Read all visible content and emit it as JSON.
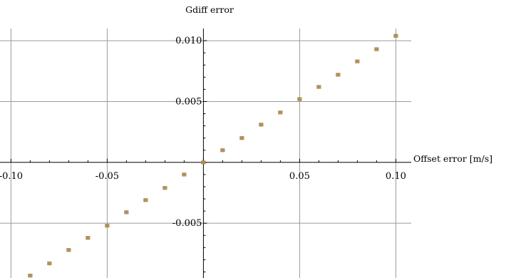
{
  "chart_data": {
    "type": "scatter",
    "title": "",
    "xlabel": "Offset error [m/s]",
    "ylabel": "Gdiff error",
    "xlim": [
      -0.102,
      0.108
    ],
    "ylim": [
      -0.0095,
      0.011
    ],
    "grid": true,
    "x_ticks": [
      {
        "value": -0.1,
        "label": "-0.10"
      },
      {
        "value": -0.05,
        "label": "-0.05"
      },
      {
        "value": 0.05,
        "label": "0.05"
      },
      {
        "value": 0.1,
        "label": "0.10"
      }
    ],
    "y_ticks": [
      {
        "value": -0.005,
        "label": "-0.005"
      },
      {
        "value": 0.005,
        "label": "0.005"
      },
      {
        "value": 0.01,
        "label": "0.010"
      }
    ],
    "series": [
      {
        "color": "#a07a7e",
        "x": [
          -0.09,
          -0.08,
          -0.07,
          -0.06,
          -0.05,
          -0.04,
          -0.03,
          -0.02,
          -0.01,
          0.0,
          0.01,
          0.02,
          0.03,
          0.04,
          0.05,
          0.06,
          0.07,
          0.08,
          0.09,
          0.1
        ],
        "y": [
          -0.0093,
          -0.0083,
          -0.0072,
          -0.0062,
          -0.0052,
          -0.0041,
          -0.0031,
          -0.0021,
          -0.001,
          0.0,
          0.001,
          0.002,
          0.0031,
          0.0041,
          0.0052,
          0.0062,
          0.0072,
          0.0083,
          0.0093,
          0.0104
        ]
      },
      {
        "color": "#b59048",
        "x": [
          -0.09,
          -0.08,
          -0.07,
          -0.06,
          -0.05,
          -0.04,
          -0.03,
          -0.02,
          -0.01,
          0.0,
          0.01,
          0.02,
          0.03,
          0.04,
          0.05,
          0.06,
          0.07,
          0.08,
          0.09,
          0.1
        ],
        "y": [
          -0.0093,
          -0.0083,
          -0.0072,
          -0.0062,
          -0.0052,
          -0.0041,
          -0.0031,
          -0.0021,
          -0.001,
          0.0,
          0.001,
          0.002,
          0.0031,
          0.0041,
          0.0052,
          0.0062,
          0.0072,
          0.0083,
          0.0093,
          0.0104
        ]
      }
    ]
  },
  "colors": {
    "grid": "#9a9a9a",
    "axis": "#000000",
    "background": "#ffffff"
  }
}
